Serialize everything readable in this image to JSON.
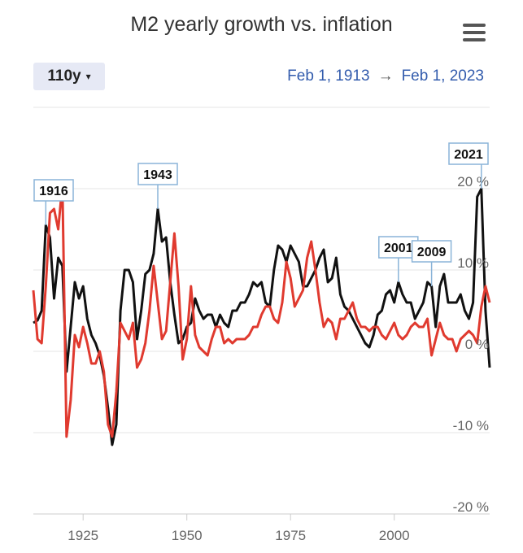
{
  "header": {
    "title": "M2 yearly growth vs. inflation",
    "range_label": "110y",
    "caret": "▾",
    "date_from": "Feb 1, 1913",
    "date_arrow": "→",
    "date_to": "Feb 1, 2023"
  },
  "colors": {
    "m2": "#111111",
    "inflation": "#e03a2f",
    "annotation_border": "#8ab4d8",
    "grid": "#e6e6e6"
  },
  "chart_data": {
    "type": "line",
    "title": "M2 yearly growth vs. inflation",
    "xlim": [
      1913,
      2023
    ],
    "ylim": [
      -20,
      30
    ],
    "x_ticks": [
      1925,
      1950,
      1975,
      2000
    ],
    "x_tick_labels": [
      "1925",
      "1950",
      "1975",
      "2000"
    ],
    "y_ticks": [
      20,
      10,
      0,
      -10,
      -20
    ],
    "y_tick_labels": [
      "20 %",
      "10 %",
      "0 %",
      "-10 %",
      "-20 %"
    ],
    "grid": true,
    "series": [
      {
        "key": "m2",
        "points": [
          [
            1913,
            3.5
          ],
          [
            1914,
            3.8
          ],
          [
            1915,
            5
          ],
          [
            1916,
            15.5
          ],
          [
            1917,
            14
          ],
          [
            1918,
            6.5
          ],
          [
            1919,
            11.5
          ],
          [
            1920,
            10.5
          ],
          [
            1921,
            -2.5
          ],
          [
            1922,
            3
          ],
          [
            1923,
            8.5
          ],
          [
            1924,
            6.5
          ],
          [
            1925,
            8
          ],
          [
            1926,
            4
          ],
          [
            1927,
            2
          ],
          [
            1928,
            1
          ],
          [
            1929,
            -0.5
          ],
          [
            1930,
            -3
          ],
          [
            1931,
            -7
          ],
          [
            1932,
            -11.5
          ],
          [
            1933,
            -9
          ],
          [
            1934,
            5
          ],
          [
            1935,
            10
          ],
          [
            1936,
            10
          ],
          [
            1937,
            8.5
          ],
          [
            1938,
            1.5
          ],
          [
            1939,
            5
          ],
          [
            1940,
            9.5
          ],
          [
            1941,
            10
          ],
          [
            1942,
            12
          ],
          [
            1943,
            17.5
          ],
          [
            1944,
            13.5
          ],
          [
            1945,
            14
          ],
          [
            1946,
            8.5
          ],
          [
            1947,
            4.5
          ],
          [
            1948,
            1
          ],
          [
            1949,
            1.5
          ],
          [
            1950,
            3
          ],
          [
            1951,
            3.5
          ],
          [
            1952,
            6.5
          ],
          [
            1953,
            5
          ],
          [
            1954,
            4
          ],
          [
            1955,
            4.5
          ],
          [
            1956,
            4.5
          ],
          [
            1957,
            3
          ],
          [
            1958,
            4.5
          ],
          [
            1959,
            3.5
          ],
          [
            1960,
            3
          ],
          [
            1961,
            5
          ],
          [
            1962,
            5
          ],
          [
            1963,
            6
          ],
          [
            1964,
            6
          ],
          [
            1965,
            7
          ],
          [
            1966,
            8.5
          ],
          [
            1967,
            8
          ],
          [
            1968,
            8.5
          ],
          [
            1969,
            6
          ],
          [
            1970,
            5.5
          ],
          [
            1971,
            10
          ],
          [
            1972,
            13
          ],
          [
            1973,
            12.5
          ],
          [
            1974,
            11
          ],
          [
            1975,
            13
          ],
          [
            1976,
            12
          ],
          [
            1977,
            11
          ],
          [
            1978,
            8
          ],
          [
            1979,
            8
          ],
          [
            1980,
            9
          ],
          [
            1981,
            10
          ],
          [
            1982,
            11.5
          ],
          [
            1983,
            12.5
          ],
          [
            1984,
            8.5
          ],
          [
            1985,
            9
          ],
          [
            1986,
            11.5
          ],
          [
            1987,
            7
          ],
          [
            1988,
            5.5
          ],
          [
            1989,
            5
          ],
          [
            1990,
            4
          ],
          [
            1991,
            3
          ],
          [
            1992,
            2
          ],
          [
            1993,
            1
          ],
          [
            1994,
            0.5
          ],
          [
            1995,
            2
          ],
          [
            1996,
            4.5
          ],
          [
            1997,
            5
          ],
          [
            1998,
            7
          ],
          [
            1999,
            7.5
          ],
          [
            2000,
            6
          ],
          [
            2001,
            8.5
          ],
          [
            2002,
            7
          ],
          [
            2003,
            6
          ],
          [
            2004,
            6
          ],
          [
            2005,
            4
          ],
          [
            2006,
            5
          ],
          [
            2007,
            6
          ],
          [
            2008,
            8.5
          ],
          [
            2009,
            8
          ],
          [
            2010,
            3
          ],
          [
            2011,
            8
          ],
          [
            2012,
            9.5
          ],
          [
            2013,
            6
          ],
          [
            2014,
            6
          ],
          [
            2015,
            6
          ],
          [
            2016,
            7
          ],
          [
            2017,
            5
          ],
          [
            2018,
            4
          ],
          [
            2019,
            6
          ],
          [
            2020,
            19
          ],
          [
            2021,
            20
          ],
          [
            2022,
            5
          ],
          [
            2023,
            -2
          ]
        ]
      },
      {
        "key": "inflation",
        "points": [
          [
            1913,
            7.5
          ],
          [
            1914,
            1.5
          ],
          [
            1915,
            1
          ],
          [
            1916,
            8
          ],
          [
            1917,
            17
          ],
          [
            1918,
            17.5
          ],
          [
            1919,
            15
          ],
          [
            1920,
            20.5
          ],
          [
            1921,
            -10.5
          ],
          [
            1922,
            -6
          ],
          [
            1923,
            2
          ],
          [
            1924,
            0.5
          ],
          [
            1925,
            3
          ],
          [
            1926,
            1
          ],
          [
            1927,
            -1.5
          ],
          [
            1928,
            -1.5
          ],
          [
            1929,
            0
          ],
          [
            1930,
            -2.5
          ],
          [
            1931,
            -9
          ],
          [
            1932,
            -10.5
          ],
          [
            1933,
            -5
          ],
          [
            1934,
            3.5
          ],
          [
            1935,
            2.5
          ],
          [
            1936,
            1.5
          ],
          [
            1937,
            3.5
          ],
          [
            1938,
            -2
          ],
          [
            1939,
            -1
          ],
          [
            1940,
            1
          ],
          [
            1941,
            5
          ],
          [
            1942,
            10.5
          ],
          [
            1943,
            6
          ],
          [
            1944,
            1.5
          ],
          [
            1945,
            2.5
          ],
          [
            1946,
            8.5
          ],
          [
            1947,
            14.5
          ],
          [
            1948,
            8
          ],
          [
            1949,
            -1
          ],
          [
            1950,
            1.5
          ],
          [
            1951,
            8
          ],
          [
            1952,
            2
          ],
          [
            1953,
            0.5
          ],
          [
            1954,
            0
          ],
          [
            1955,
            -0.5
          ],
          [
            1956,
            1.5
          ],
          [
            1957,
            3
          ],
          [
            1958,
            3
          ],
          [
            1959,
            1
          ],
          [
            1960,
            1.5
          ],
          [
            1961,
            1
          ],
          [
            1962,
            1.5
          ],
          [
            1963,
            1.5
          ],
          [
            1964,
            1.5
          ],
          [
            1965,
            2
          ],
          [
            1966,
            3
          ],
          [
            1967,
            3
          ],
          [
            1968,
            4.5
          ],
          [
            1969,
            5.5
          ],
          [
            1970,
            5.5
          ],
          [
            1971,
            4
          ],
          [
            1972,
            3.5
          ],
          [
            1973,
            6
          ],
          [
            1974,
            11
          ],
          [
            1975,
            9
          ],
          [
            1976,
            5.5
          ],
          [
            1977,
            6.5
          ],
          [
            1978,
            7.5
          ],
          [
            1979,
            11.5
          ],
          [
            1980,
            13.5
          ],
          [
            1981,
            10
          ],
          [
            1982,
            6
          ],
          [
            1983,
            3
          ],
          [
            1984,
            4
          ],
          [
            1985,
            3.5
          ],
          [
            1986,
            1.5
          ],
          [
            1987,
            4
          ],
          [
            1988,
            4
          ],
          [
            1989,
            5
          ],
          [
            1990,
            6
          ],
          [
            1991,
            4
          ],
          [
            1992,
            3
          ],
          [
            1993,
            3
          ],
          [
            1994,
            2.5
          ],
          [
            1995,
            3
          ],
          [
            1996,
            3
          ],
          [
            1997,
            2
          ],
          [
            1998,
            1.5
          ],
          [
            1999,
            2.5
          ],
          [
            2000,
            3.5
          ],
          [
            2001,
            2
          ],
          [
            2002,
            1.5
          ],
          [
            2003,
            2
          ],
          [
            2004,
            3
          ],
          [
            2005,
            3.5
          ],
          [
            2006,
            3
          ],
          [
            2007,
            3
          ],
          [
            2008,
            4
          ],
          [
            2009,
            -0.5
          ],
          [
            2010,
            1.5
          ],
          [
            2011,
            3.5
          ],
          [
            2012,
            2
          ],
          [
            2013,
            1.5
          ],
          [
            2014,
            1.5
          ],
          [
            2015,
            0
          ],
          [
            2016,
            1.5
          ],
          [
            2017,
            2
          ],
          [
            2018,
            2.5
          ],
          [
            2019,
            2
          ],
          [
            2020,
            1
          ],
          [
            2021,
            5.5
          ],
          [
            2022,
            8
          ],
          [
            2023,
            6
          ]
        ]
      }
    ],
    "annotations": [
      {
        "label": "1916",
        "x": 1916,
        "y": 15.5
      },
      {
        "label": "1943",
        "x": 1943,
        "y": 17.5
      },
      {
        "label": "2001",
        "x": 2001,
        "y": 8.5
      },
      {
        "label": "2009",
        "x": 2009,
        "y": 8
      },
      {
        "label": "2021",
        "x": 2021,
        "y": 20
      }
    ]
  }
}
